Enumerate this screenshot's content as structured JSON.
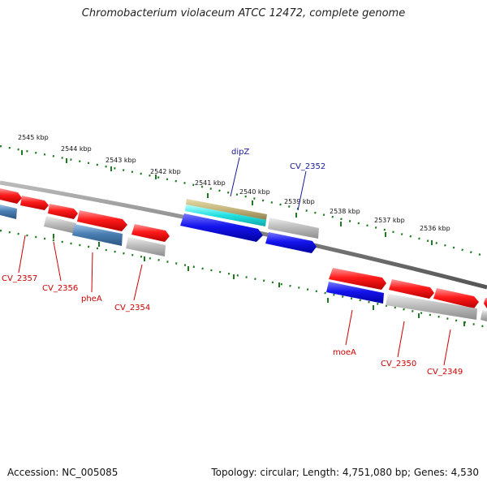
{
  "title": "Chromobacterium violaceum ATCC 12472, complete genome",
  "footer": {
    "accession": "Accession: NC_005085",
    "summary": "Topology: circular; Length: 4,751,080 bp; Genes: 4,530"
  },
  "ticks": [
    "2545 kbp",
    "2544 kbp",
    "2543 kbp",
    "2542 kbp",
    "2541 kbp",
    "2540 kbp",
    "2539 kbp",
    "2538 kbp",
    "2537 kbp",
    "2536 kbp"
  ],
  "labels": {
    "dipZ": "dipZ",
    "cv2352": "CV_2352",
    "cv2357": "CV_2357",
    "cv2356": "CV_2356",
    "pheA": "pheA",
    "cv2354": "CV_2354",
    "moeA": "moeA",
    "cv2350": "CV_2350",
    "cv2349": "CV_2349"
  },
  "colors": {
    "cds_red": "#ee1111",
    "rna_gray": "#b8b8b8",
    "blast_blue": "#1a1aee",
    "steel": "#4a7fb3",
    "cyan": "#22dddd",
    "khaki": "#c4b47a",
    "backbone": "#888888",
    "tick_green": "#1f7a1f",
    "label_red": "#cc0000",
    "label_blue": "#1a1a99"
  }
}
